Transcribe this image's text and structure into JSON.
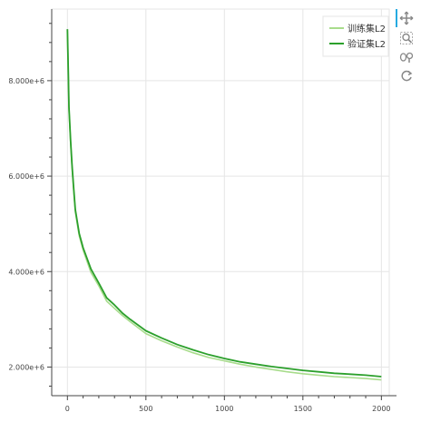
{
  "chart_data": {
    "type": "line",
    "xlim": [
      -100,
      2050
    ],
    "ylim": [
      1400000,
      9500000
    ],
    "x_ticks": [
      0,
      500,
      1000,
      1500,
      2000
    ],
    "x_tick_labels": [
      "0",
      "500",
      "1000",
      "1500",
      "2000"
    ],
    "y_ticks": [
      2000000,
      4000000,
      6000000,
      8000000
    ],
    "y_tick_labels": [
      "2.000e+6",
      "4.000e+6",
      "6.000e+6",
      "8.000e+6"
    ],
    "grid": true,
    "legend_position": "top-right",
    "series": [
      {
        "name": "训练集L2",
        "color": "#a8dc8c",
        "x": [
          0,
          5,
          10,
          20,
          30,
          40,
          50,
          75,
          100,
          150,
          200,
          250,
          300,
          350,
          400,
          500,
          600,
          700,
          800,
          900,
          1000,
          1100,
          1200,
          1300,
          1400,
          1500,
          1600,
          1700,
          1800,
          1900,
          2000
        ],
        "y": [
          9050000,
          8200000,
          7400000,
          6700000,
          6150000,
          5700000,
          5250000,
          4750000,
          4450000,
          3980000,
          3700000,
          3380000,
          3230000,
          3080000,
          2950000,
          2700000,
          2550000,
          2420000,
          2300000,
          2200000,
          2130000,
          2060000,
          2000000,
          1950000,
          1900000,
          1860000,
          1830000,
          1800000,
          1780000,
          1760000,
          1730000
        ]
      },
      {
        "name": "验证集L2",
        "color": "#2ca02c",
        "x": [
          0,
          5,
          10,
          20,
          30,
          40,
          50,
          75,
          100,
          150,
          200,
          250,
          300,
          350,
          400,
          500,
          600,
          700,
          800,
          900,
          1000,
          1100,
          1200,
          1300,
          1400,
          1500,
          1600,
          1700,
          1800,
          1900,
          2000
        ],
        "y": [
          9080000,
          8250000,
          7450000,
          6750000,
          6200000,
          5750000,
          5300000,
          4800000,
          4500000,
          4050000,
          3760000,
          3450000,
          3300000,
          3130000,
          3000000,
          2760000,
          2610000,
          2470000,
          2360000,
          2260000,
          2180000,
          2110000,
          2060000,
          2010000,
          1970000,
          1930000,
          1900000,
          1870000,
          1850000,
          1830000,
          1800000
        ]
      }
    ]
  },
  "toolbar": {
    "tools": [
      {
        "name": "pan",
        "icon": "pan-icon"
      },
      {
        "name": "box-zoom",
        "icon": "box-zoom-icon"
      },
      {
        "name": "wheel-zoom",
        "icon": "wheel-zoom-icon"
      },
      {
        "name": "reset",
        "icon": "reset-icon"
      }
    ]
  }
}
